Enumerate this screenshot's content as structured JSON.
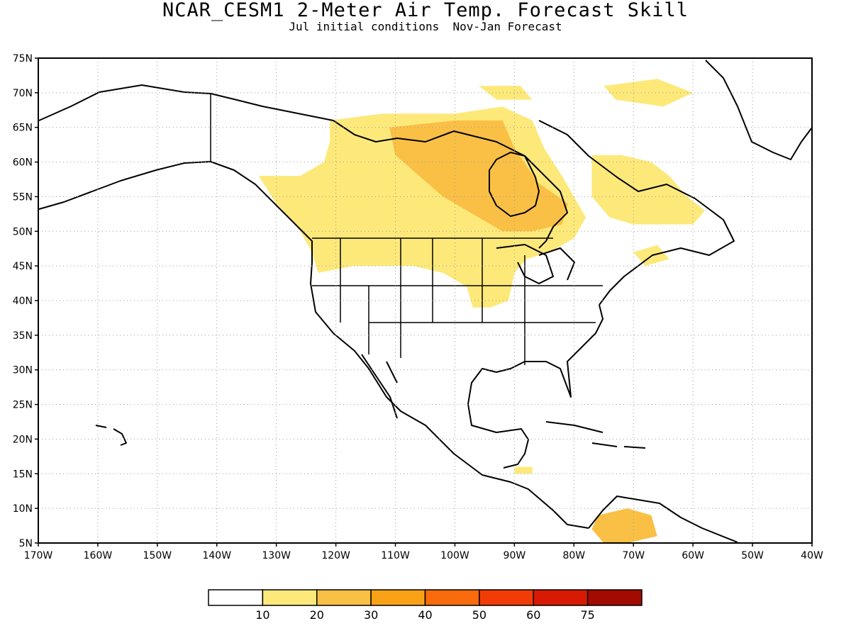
{
  "title": "NCAR_CESM1 2-Meter Air Temp. Forecast Skill",
  "subtitle": "Jul initial conditions  Nov-Jan Forecast",
  "map": {
    "lon_range": [
      -170,
      -40
    ],
    "lat_range": [
      5,
      75
    ],
    "grid": "dotted",
    "lat_ticks": [
      "5N",
      "10N",
      "15N",
      "20N",
      "25N",
      "30N",
      "35N",
      "40N",
      "45N",
      "50N",
      "55N",
      "60N",
      "65N",
      "70N",
      "75N"
    ],
    "lon_ticks": [
      "170W",
      "160W",
      "150W",
      "140W",
      "130W",
      "120W",
      "110W",
      "100W",
      "90W",
      "80W",
      "70W",
      "60W",
      "50W",
      "40W"
    ]
  },
  "colorbar": {
    "colors": [
      "#ffffff",
      "#fde97a",
      "#fac045",
      "#f9a218",
      "#f96b0c",
      "#f23b07",
      "#d81a04",
      "#a30a00"
    ],
    "labels": [
      "10",
      "20",
      "30",
      "40",
      "50",
      "60",
      "75"
    ]
  },
  "skill_regions": [
    {
      "name": "northern-canada",
      "color": "#fde97a",
      "points": [
        [
          -121,
          66
        ],
        [
          -112,
          67
        ],
        [
          -100,
          67
        ],
        [
          -92,
          68
        ],
        [
          -87,
          66
        ],
        [
          -85,
          62
        ],
        [
          -82,
          58
        ],
        [
          -80,
          55
        ],
        [
          -78,
          52
        ],
        [
          -80,
          49
        ],
        [
          -84,
          47
        ],
        [
          -88,
          46
        ],
        [
          -90,
          44
        ],
        [
          -91,
          40
        ],
        [
          -94,
          39
        ],
        [
          -97,
          39
        ],
        [
          -98,
          42
        ],
        [
          -102,
          44
        ],
        [
          -107,
          45
        ],
        [
          -112,
          45
        ],
        [
          -117,
          45
        ],
        [
          -123,
          44
        ],
        [
          -124,
          47
        ],
        [
          -126,
          50
        ],
        [
          -130,
          54
        ],
        [
          -133,
          58
        ],
        [
          -126,
          58
        ],
        [
          -122,
          60
        ],
        [
          -121,
          63
        ]
      ]
    },
    {
      "name": "hudson-core",
      "color": "#fac045",
      "points": [
        [
          -111,
          65
        ],
        [
          -100,
          66
        ],
        [
          -92,
          66
        ],
        [
          -90,
          62
        ],
        [
          -86,
          57
        ],
        [
          -81,
          54
        ],
        [
          -82,
          51
        ],
        [
          -87,
          50
        ],
        [
          -92,
          50
        ],
        [
          -96,
          52
        ],
        [
          -102,
          55
        ],
        [
          -106,
          58
        ],
        [
          -110,
          61
        ]
      ]
    },
    {
      "name": "quebec-labrador",
      "color": "#fde97a",
      "points": [
        [
          -77,
          61
        ],
        [
          -72,
          61
        ],
        [
          -67,
          60
        ],
        [
          -64,
          58
        ],
        [
          -61,
          55
        ],
        [
          -58,
          53
        ],
        [
          -60,
          51
        ],
        [
          -65,
          51
        ],
        [
          -70,
          51
        ],
        [
          -74,
          52
        ],
        [
          -77,
          55
        ]
      ]
    },
    {
      "name": "greenland-arctic",
      "color": "#fde97a",
      "points": [
        [
          -75,
          71
        ],
        [
          -66,
          72
        ],
        [
          -60,
          70
        ],
        [
          -65,
          68
        ],
        [
          -73,
          69
        ]
      ]
    },
    {
      "name": "mid-arctic",
      "color": "#fde97a",
      "points": [
        [
          -96,
          71
        ],
        [
          -89,
          71
        ],
        [
          -87,
          69
        ],
        [
          -93,
          69
        ]
      ]
    },
    {
      "name": "maritimes",
      "color": "#fde97a",
      "points": [
        [
          -70,
          47
        ],
        [
          -66,
          48
        ],
        [
          -64,
          46
        ],
        [
          -68,
          45
        ]
      ]
    },
    {
      "name": "central-america",
      "color": "#fde97a",
      "points": [
        [
          -90,
          16
        ],
        [
          -87,
          16
        ],
        [
          -87,
          15
        ],
        [
          -90,
          15
        ]
      ]
    },
    {
      "name": "south-america",
      "color": "#fac045",
      "points": [
        [
          -76,
          9
        ],
        [
          -71,
          10
        ],
        [
          -67,
          9
        ],
        [
          -66,
          6
        ],
        [
          -71,
          5
        ],
        [
          -75,
          5
        ],
        [
          -77,
          7
        ]
      ]
    }
  ]
}
